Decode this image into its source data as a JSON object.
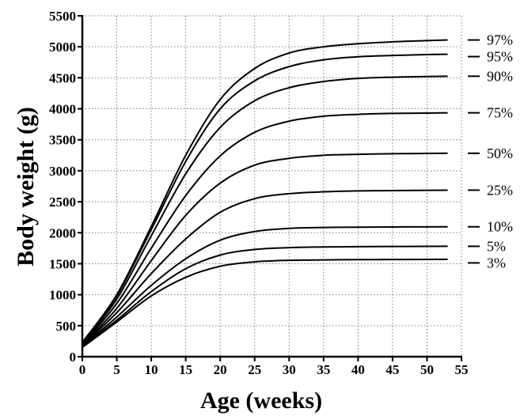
{
  "chart_data": {
    "type": "line",
    "xlabel": "Age (weeks)",
    "ylabel": "Body weight (g)",
    "xlim": [
      0,
      55
    ],
    "ylim": [
      0,
      5500
    ],
    "xticks": [
      0,
      5,
      10,
      15,
      20,
      25,
      30,
      35,
      40,
      45,
      50,
      55
    ],
    "yticks": [
      0,
      500,
      1000,
      1500,
      2000,
      2500,
      3000,
      3500,
      4000,
      4500,
      5000,
      5500
    ],
    "grid": true,
    "x": [
      0,
      5,
      10,
      15,
      20,
      25,
      30,
      35,
      40,
      45,
      50,
      53
    ],
    "series": [
      {
        "name": "97%",
        "values": [
          230,
          1000,
          2100,
          3250,
          4150,
          4650,
          4900,
          5000,
          5050,
          5080,
          5100,
          5110
        ]
      },
      {
        "name": "95%",
        "values": [
          220,
          980,
          2050,
          3150,
          4000,
          4450,
          4680,
          4790,
          4840,
          4860,
          4875,
          4880
        ]
      },
      {
        "name": "90%",
        "values": [
          210,
          930,
          1950,
          2950,
          3700,
          4130,
          4340,
          4440,
          4490,
          4510,
          4520,
          4525
        ]
      },
      {
        "name": "75%",
        "values": [
          200,
          860,
          1750,
          2600,
          3240,
          3620,
          3800,
          3880,
          3910,
          3925,
          3930,
          3935
        ]
      },
      {
        "name": "50%",
        "values": [
          190,
          780,
          1550,
          2280,
          2800,
          3090,
          3200,
          3250,
          3265,
          3275,
          3280,
          3282
        ]
      },
      {
        "name": "25%",
        "values": [
          180,
          710,
          1340,
          1900,
          2330,
          2550,
          2630,
          2660,
          2675,
          2680,
          2685,
          2687
        ]
      },
      {
        "name": "10%",
        "values": [
          170,
          640,
          1150,
          1580,
          1880,
          2020,
          2070,
          2085,
          2090,
          2093,
          2095,
          2096
        ]
      },
      {
        "name": "5%",
        "values": [
          160,
          590,
          1050,
          1420,
          1640,
          1730,
          1760,
          1770,
          1775,
          1778,
          1780,
          1781
        ]
      },
      {
        "name": "3%",
        "values": [
          150,
          560,
          980,
          1280,
          1460,
          1530,
          1555,
          1562,
          1566,
          1568,
          1570,
          1571
        ]
      }
    ],
    "legend_placement": "right"
  }
}
